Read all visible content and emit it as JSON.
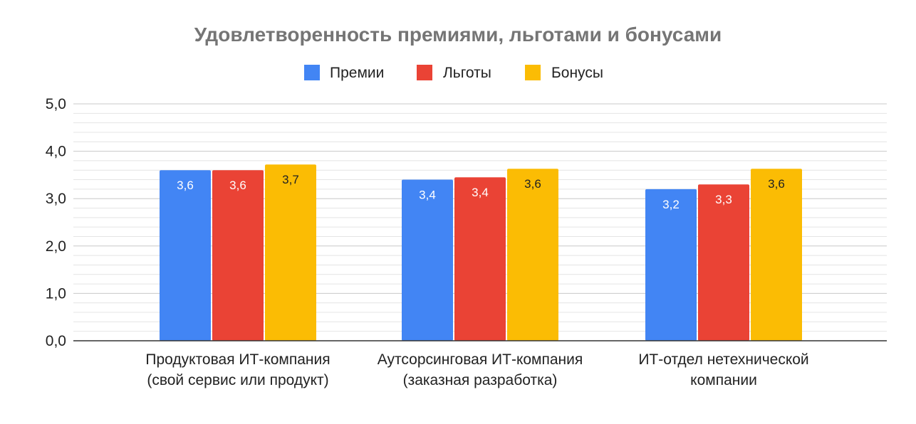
{
  "chart_data": {
    "type": "bar",
    "title": "Удовлетворенность премиями, льготами и бонусами",
    "xlabel": "",
    "ylabel": "",
    "ylim": [
      0,
      5
    ],
    "yticks": [
      "0,0",
      "1,0",
      "2,0",
      "3,0",
      "4,0",
      "5,0"
    ],
    "grid": true,
    "legend_position": "top",
    "categories": [
      [
        "Продуктовая ИТ-компания",
        "(свой сервис или продукт)"
      ],
      [
        "Аутсорсинговая ИТ-компания",
        "(заказная разработка)"
      ],
      [
        "ИТ-отдел нетехнической",
        "компании"
      ]
    ],
    "series": [
      {
        "name": "Премии",
        "color": "#4285F4",
        "label_color": "#ffffff",
        "values": [
          3.6,
          3.4,
          3.2
        ],
        "labels": [
          "3,6",
          "3,4",
          "3,2"
        ]
      },
      {
        "name": "Льготы",
        "color": "#EA4335",
        "label_color": "#ffffff",
        "values": [
          3.6,
          3.45,
          3.3
        ],
        "labels": [
          "3,6",
          "3,4",
          "3,3"
        ]
      },
      {
        "name": "Бонусы",
        "color": "#FBBC04",
        "label_color": "#222222",
        "values": [
          3.72,
          3.63,
          3.63
        ],
        "labels": [
          "3,7",
          "3,6",
          "3,6"
        ]
      }
    ]
  }
}
